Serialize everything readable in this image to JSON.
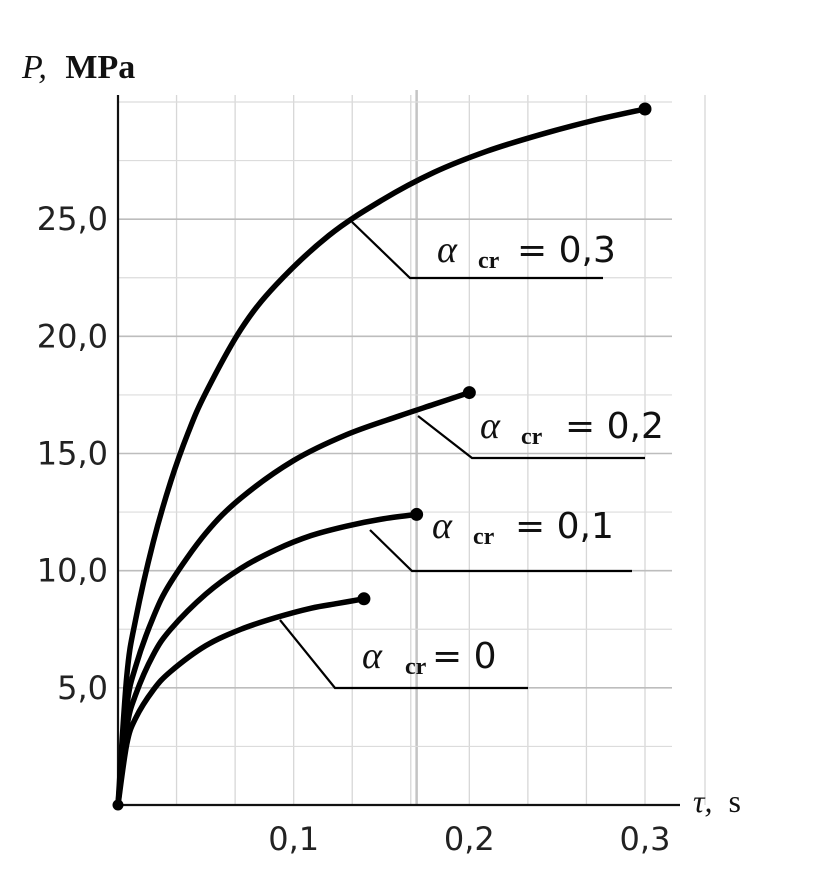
{
  "chart_data": {
    "type": "line",
    "ylabel_symbol": "P,",
    "ylabel_unit": "MPa",
    "xlabel_symbol": "τ,",
    "xlabel_unit": "s",
    "xlim": [
      0,
      0.3
    ],
    "ylim": [
      0,
      30
    ],
    "x_ticks": [
      {
        "value": 0.1,
        "label": "0,1"
      },
      {
        "value": 0.2,
        "label": "0,2"
      },
      {
        "value": 0.3,
        "label": "0,3"
      }
    ],
    "y_ticks": [
      {
        "value": 5,
        "label": "5,0"
      },
      {
        "value": 10,
        "label": "10,0"
      },
      {
        "value": 15,
        "label": "15,0"
      },
      {
        "value": 20,
        "label": "20,0"
      },
      {
        "value": 25,
        "label": "25,0"
      }
    ],
    "grid": true,
    "series": [
      {
        "name": "α cr = 0",
        "symbol": "α",
        "subscript": "cr",
        "equals_value": "= 0",
        "x": [
          0,
          0.005,
          0.01,
          0.02,
          0.03,
          0.05,
          0.07,
          0.09,
          0.11,
          0.125,
          0.14
        ],
        "y": [
          0,
          2.6,
          3.7,
          4.9,
          5.7,
          6.8,
          7.5,
          8.0,
          8.4,
          8.6,
          8.8
        ]
      },
      {
        "name": "α cr = 0,1",
        "symbol": "α",
        "subscript": "cr",
        "equals_value": "= 0,1",
        "x": [
          0,
          0.005,
          0.01,
          0.02,
          0.03,
          0.05,
          0.07,
          0.09,
          0.11,
          0.13,
          0.15,
          0.17
        ],
        "y": [
          0,
          3.3,
          4.7,
          6.4,
          7.5,
          9.0,
          10.1,
          10.9,
          11.5,
          11.9,
          12.2,
          12.4
        ]
      },
      {
        "name": "α cr = 0,2",
        "symbol": "α",
        "subscript": "cr",
        "equals_value": "= 0,2",
        "x": [
          0,
          0.005,
          0.01,
          0.02,
          0.03,
          0.05,
          0.07,
          0.1,
          0.13,
          0.16,
          0.18,
          0.2
        ],
        "y": [
          0,
          4.2,
          5.9,
          8.0,
          9.5,
          11.6,
          13.1,
          14.7,
          15.8,
          16.6,
          17.1,
          17.6
        ]
      },
      {
        "name": "α cr = 0,3",
        "symbol": "α",
        "subscript": "cr",
        "equals_value": "= 0,3",
        "x": [
          0,
          0.005,
          0.01,
          0.02,
          0.03,
          0.04,
          0.05,
          0.07,
          0.09,
          0.12,
          0.15,
          0.18,
          0.21,
          0.24,
          0.27,
          0.3
        ],
        "y": [
          0,
          5.5,
          7.9,
          11.2,
          13.8,
          15.9,
          17.6,
          20.3,
          22.2,
          24.3,
          25.8,
          27.0,
          27.9,
          28.6,
          29.2,
          29.7
        ]
      }
    ]
  }
}
